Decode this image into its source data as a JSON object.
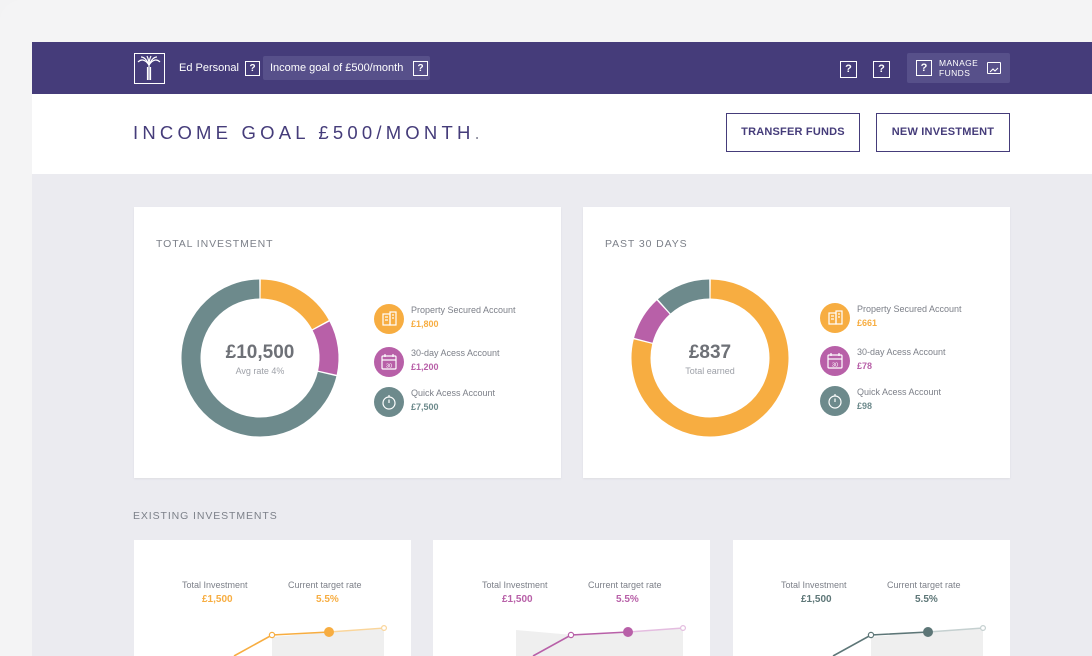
{
  "colors": {
    "brand": "#453c7a",
    "property": "#f7ad41",
    "thirty_day": "#b860a8",
    "quick": "#6d8a8c"
  },
  "topbar": {
    "account_name": "Ed Personal",
    "help_icon": "?",
    "goal": "Income goal of £500/month",
    "manage_funds": "MANAGE FUNDS"
  },
  "header": {
    "title": "INCOME GOAL £500/MONTH",
    "title_dot": ".",
    "transfer_label": "TRANSFER FUNDS",
    "new_investment_label": "NEW INVESTMENT"
  },
  "total_investment": {
    "title": "TOTAL INVESTMENT",
    "center_value": "£10,500",
    "center_sub": "Avg rate 4%",
    "chart_data": {
      "type": "pie",
      "categories": [
        "Property Secured Account",
        "30-day Acess Account",
        "Quick Acess Account"
      ],
      "values": [
        1800,
        1200,
        7500
      ]
    },
    "legend": [
      {
        "name": "Property Secured Account",
        "amount": "£1,800",
        "icon": "building-icon",
        "color": "#f7ad41"
      },
      {
        "name": "30-day Acess Account",
        "amount": "£1,200",
        "icon": "calendar-icon",
        "color": "#b860a8"
      },
      {
        "name": "Quick Acess Account",
        "amount": "£7,500",
        "icon": "stopwatch-icon",
        "color": "#6d8a8c"
      }
    ]
  },
  "past_30_days": {
    "title": "PAST 30 DAYS",
    "center_value": "£837",
    "center_sub": "Total earned",
    "chart_data": {
      "type": "pie",
      "categories": [
        "Property Secured Account",
        "30-day Acess Account",
        "Quick Acess Account"
      ],
      "values": [
        661,
        78,
        98
      ]
    },
    "legend": [
      {
        "name": "Property Secured Account",
        "amount": "£661",
        "icon": "building-icon",
        "color": "#f7ad41"
      },
      {
        "name": "30-day Acess Account",
        "amount": "£78",
        "icon": "calendar-icon",
        "color": "#b860a8"
      },
      {
        "name": "Quick Acess Account",
        "amount": "£98",
        "icon": "stopwatch-icon",
        "color": "#6d8a8c"
      }
    ]
  },
  "existing": {
    "title": "EXISTING INVESTMENTS",
    "cards": [
      {
        "total_label": "Total Investment",
        "total_value": "£1,500",
        "rate_label": "Current target rate",
        "rate_value": "5.5%",
        "color": "#f7ad41"
      },
      {
        "total_label": "Total Investment",
        "total_value": "£1,500",
        "rate_label": "Current target rate",
        "rate_value": "5.5%",
        "color": "#b860a8"
      },
      {
        "total_label": "Total Investment",
        "total_value": "£1,500",
        "rate_label": "Current target rate",
        "rate_value": "5.5%",
        "color": "#5d7677"
      }
    ]
  }
}
